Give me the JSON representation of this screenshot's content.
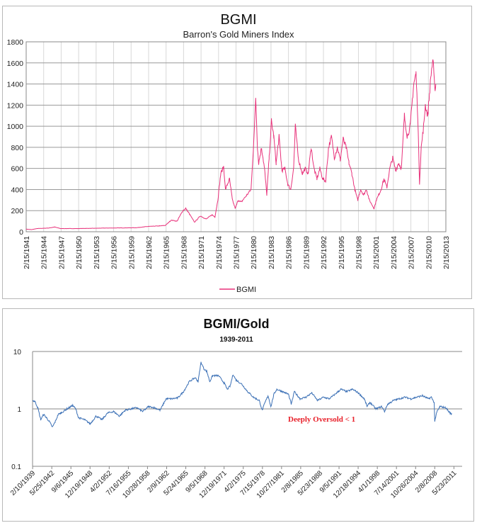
{
  "chart_data": [
    {
      "type": "line",
      "title": "BGMI",
      "subtitle": "Barron's Gold Miners Index",
      "ylim": [
        0,
        1800
      ],
      "yticks": [
        0,
        200,
        400,
        600,
        800,
        1000,
        1200,
        1400,
        1600,
        1800
      ],
      "xlim": [
        1941.12,
        2013.12
      ],
      "xticklabels": [
        "2/15/1941",
        "2/15/1944",
        "2/15/1947",
        "2/15/1950",
        "2/15/1953",
        "2/15/1956",
        "2/15/1959",
        "2/15/1962",
        "2/15/1965",
        "2/15/1968",
        "2/15/1971",
        "2/15/1974",
        "2/15/1977",
        "2/15/1980",
        "2/15/1983",
        "2/15/1986",
        "2/15/1989",
        "2/15/1992",
        "2/15/1995",
        "2/15/1998",
        "2/15/2001",
        "2/15/2004",
        "2/15/2007",
        "2/15/2010",
        "2/15/2013"
      ],
      "grid": true,
      "legend": "bottom",
      "color": "#e8317a",
      "series": [
        {
          "name": "BGMI",
          "points": [
            [
              1941.1,
              25
            ],
            [
              1942,
              20
            ],
            [
              1943,
              30
            ],
            [
              1945,
              35
            ],
            [
              1946,
              45
            ],
            [
              1947,
              30
            ],
            [
              1950,
              30
            ],
            [
              1955,
              35
            ],
            [
              1960,
              38
            ],
            [
              1962,
              50
            ],
            [
              1964,
              55
            ],
            [
              1965,
              60
            ],
            [
              1966,
              110
            ],
            [
              1967,
              100
            ],
            [
              1968,
              200
            ],
            [
              1968.5,
              220
            ],
            [
              1969,
              180
            ],
            [
              1970,
              90
            ],
            [
              1971,
              150
            ],
            [
              1972,
              120
            ],
            [
              1973,
              160
            ],
            [
              1973.5,
              140
            ],
            [
              1974,
              300
            ],
            [
              1974.5,
              550
            ],
            [
              1975,
              620
            ],
            [
              1975.3,
              400
            ],
            [
              1976,
              500
            ],
            [
              1976.5,
              300
            ],
            [
              1977,
              220
            ],
            [
              1977.5,
              300
            ],
            [
              1978,
              280
            ],
            [
              1979,
              350
            ],
            [
              1979.7,
              400
            ],
            [
              1980,
              700
            ],
            [
              1980.3,
              1000
            ],
            [
              1980.5,
              1280
            ],
            [
              1980.8,
              800
            ],
            [
              1981,
              650
            ],
            [
              1981.5,
              800
            ],
            [
              1982,
              600
            ],
            [
              1982.4,
              350
            ],
            [
              1982.8,
              700
            ],
            [
              1983.2,
              1050
            ],
            [
              1983.6,
              900
            ],
            [
              1984,
              650
            ],
            [
              1984.5,
              900
            ],
            [
              1985,
              580
            ],
            [
              1985.5,
              600
            ],
            [
              1986,
              450
            ],
            [
              1986.5,
              400
            ],
            [
              1987,
              600
            ],
            [
              1987.3,
              1000
            ],
            [
              1987.8,
              700
            ],
            [
              1988,
              650
            ],
            [
              1988.5,
              550
            ],
            [
              1989,
              600
            ],
            [
              1989.5,
              550
            ],
            [
              1990,
              800
            ],
            [
              1990.5,
              600
            ],
            [
              1991,
              500
            ],
            [
              1991.5,
              600
            ],
            [
              1992,
              500
            ],
            [
              1992.5,
              480
            ],
            [
              1993,
              800
            ],
            [
              1993.5,
              900
            ],
            [
              1994,
              700
            ],
            [
              1994.5,
              800
            ],
            [
              1995,
              680
            ],
            [
              1995.5,
              880
            ],
            [
              1996,
              800
            ],
            [
              1996.5,
              650
            ],
            [
              1997,
              550
            ],
            [
              1997.5,
              400
            ],
            [
              1998,
              300
            ],
            [
              1998.5,
              400
            ],
            [
              1999,
              350
            ],
            [
              1999.5,
              400
            ],
            [
              2000,
              300
            ],
            [
              2000.8,
              220
            ],
            [
              2001.2,
              300
            ],
            [
              2002,
              400
            ],
            [
              2002.5,
              500
            ],
            [
              2003,
              420
            ],
            [
              2003.5,
              600
            ],
            [
              2004,
              700
            ],
            [
              2004.5,
              580
            ],
            [
              2005,
              650
            ],
            [
              2005.5,
              600
            ],
            [
              2006,
              1100
            ],
            [
              2006.5,
              900
            ],
            [
              2007,
              1000
            ],
            [
              2007.3,
              1200
            ],
            [
              2007.6,
              1400
            ],
            [
              2008,
              1500
            ],
            [
              2008.3,
              1100
            ],
            [
              2008.6,
              460
            ],
            [
              2008.9,
              800
            ],
            [
              2009.3,
              1000
            ],
            [
              2009.6,
              1200
            ],
            [
              2010,
              1100
            ],
            [
              2010.3,
              1300
            ],
            [
              2010.6,
              1500
            ],
            [
              2010.9,
              1640
            ],
            [
              2011.2,
              1350
            ],
            [
              2011.4,
              1400
            ]
          ]
        }
      ]
    },
    {
      "type": "line",
      "title": "BGMI/Gold",
      "subtitle": "1939-2011",
      "yscale": "log",
      "ylim": [
        0.1,
        10
      ],
      "yticks": [
        "0.1",
        "1",
        "10"
      ],
      "xlim": [
        1939.1,
        2012.8
      ],
      "xtickyears": [
        1939.11,
        1942.4,
        1945.68,
        1948.96,
        1952.25,
        1955.54,
        1958.82,
        1962.11,
        1965.39,
        1968.68,
        1971.96,
        1975.25,
        1978.54,
        1981.82,
        1985.1,
        1988.39,
        1991.68,
        1994.96,
        1998.25,
        2001.53,
        2004.82,
        2008.1,
        2011.39
      ],
      "xticklabels": [
        "2/10/1939",
        "5/25/1942",
        "9/6/1945",
        "12/19/1948",
        "4/2/1952",
        "7/16/1955",
        "10/28/1958",
        "2/9/1962",
        "5/24/1965",
        "9/5/1968",
        "12/19/1971",
        "4/2/1975",
        "7/15/1978",
        "10/27/1981",
        "2/8/1985",
        "5/23/1988",
        "9/5/1991",
        "12/18/1994",
        "4/1/1998",
        "7/14/2001",
        "10/26/2004",
        "2/8/2008",
        "5/23/2011"
      ],
      "annotation": "Deeply Oversold < 1",
      "annotation_color": "#e8202a",
      "color": "#3a6fb5",
      "series": [
        {
          "name": "BGMI/Gold",
          "points": [
            [
              1939.1,
              1.4
            ],
            [
              1939.5,
              1.35
            ],
            [
              1940,
              1.05
            ],
            [
              1940.5,
              0.65
            ],
            [
              1941,
              0.8
            ],
            [
              1941.5,
              0.7
            ],
            [
              1942,
              0.6
            ],
            [
              1942.5,
              0.48
            ],
            [
              1943,
              0.6
            ],
            [
              1943.5,
              0.8
            ],
            [
              1944,
              0.85
            ],
            [
              1945,
              1.0
            ],
            [
              1946,
              1.15
            ],
            [
              1946.5,
              1.0
            ],
            [
              1947,
              0.7
            ],
            [
              1948,
              0.65
            ],
            [
              1949,
              0.55
            ],
            [
              1950,
              0.75
            ],
            [
              1951,
              0.65
            ],
            [
              1952,
              0.85
            ],
            [
              1953,
              0.9
            ],
            [
              1954,
              0.75
            ],
            [
              1955,
              0.95
            ],
            [
              1956,
              1.0
            ],
            [
              1957,
              1.05
            ],
            [
              1958,
              0.9
            ],
            [
              1959,
              1.1
            ],
            [
              1960,
              1.05
            ],
            [
              1961,
              0.95
            ],
            [
              1962,
              1.5
            ],
            [
              1963,
              1.5
            ],
            [
              1964,
              1.55
            ],
            [
              1965,
              2.0
            ],
            [
              1966,
              3.0
            ],
            [
              1967,
              3.5
            ],
            [
              1967.5,
              3.0
            ],
            [
              1968,
              6.5
            ],
            [
              1968.5,
              5.0
            ],
            [
              1969,
              4.5
            ],
            [
              1969.5,
              3.0
            ],
            [
              1970,
              3.8
            ],
            [
              1971,
              3.8
            ],
            [
              1972,
              2.8
            ],
            [
              1972.5,
              2.2
            ],
            [
              1973,
              2.5
            ],
            [
              1973.5,
              4.0
            ],
            [
              1974,
              3.2
            ],
            [
              1975,
              2.7
            ],
            [
              1976,
              2.0
            ],
            [
              1977,
              1.6
            ],
            [
              1978,
              1.4
            ],
            [
              1978.5,
              0.95
            ],
            [
              1979,
              1.3
            ],
            [
              1979.5,
              1.7
            ],
            [
              1980,
              1.1
            ],
            [
              1980.5,
              1.8
            ],
            [
              1981,
              2.2
            ],
            [
              1982,
              2.0
            ],
            [
              1983,
              1.8
            ],
            [
              1983.5,
              1.2
            ],
            [
              1984,
              2.0
            ],
            [
              1985,
              1.5
            ],
            [
              1986,
              1.6
            ],
            [
              1987,
              1.9
            ],
            [
              1988,
              1.4
            ],
            [
              1989,
              1.6
            ],
            [
              1990,
              1.5
            ],
            [
              1991,
              1.8
            ],
            [
              1992,
              2.2
            ],
            [
              1993,
              2.0
            ],
            [
              1994,
              2.2
            ],
            [
              1995,
              1.9
            ],
            [
              1996,
              1.5
            ],
            [
              1996.5,
              1.1
            ],
            [
              1997,
              1.3
            ],
            [
              1998,
              1.0
            ],
            [
              1999,
              1.1
            ],
            [
              1999.5,
              0.9
            ],
            [
              2000,
              1.2
            ],
            [
              2001,
              1.4
            ],
            [
              2002,
              1.5
            ],
            [
              2003,
              1.6
            ],
            [
              2004,
              1.5
            ],
            [
              2005,
              1.6
            ],
            [
              2006,
              1.7
            ],
            [
              2007,
              1.5
            ],
            [
              2007.5,
              1.6
            ],
            [
              2008,
              1.3
            ],
            [
              2008.1,
              0.62
            ],
            [
              2008.5,
              0.9
            ],
            [
              2009,
              1.1
            ],
            [
              2010,
              1.05
            ],
            [
              2010.5,
              0.9
            ],
            [
              2011,
              0.8
            ]
          ]
        }
      ]
    }
  ]
}
